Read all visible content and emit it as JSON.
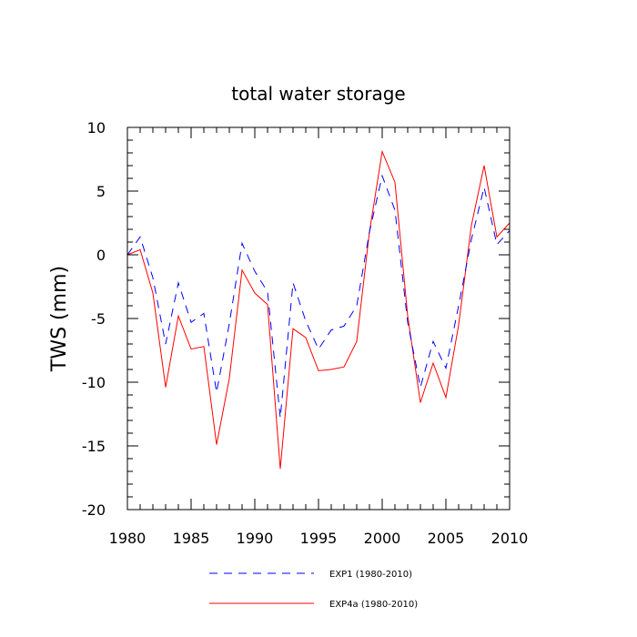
{
  "chart_data": {
    "type": "line",
    "title": "total water storage",
    "xlabel": "",
    "ylabel": "TWS  (mm)",
    "xlim": [
      1980,
      2010
    ],
    "ylim": [
      -20,
      10
    ],
    "xticks": [
      1980,
      1985,
      1990,
      1995,
      2000,
      2005,
      2010
    ],
    "yticks": [
      10,
      5,
      0,
      -5,
      -10,
      -15,
      -20
    ],
    "x": [
      1980,
      1981,
      1982,
      1983,
      1984,
      1985,
      1986,
      1987,
      1988,
      1989,
      1990,
      1991,
      1992,
      1993,
      1994,
      1995,
      1996,
      1997,
      1998,
      1999,
      2000,
      2001,
      2002,
      2003,
      2004,
      2005,
      2006,
      2007,
      2008,
      2009,
      2010
    ],
    "series": [
      {
        "name": "EXP1 (1980-2010)",
        "color": "#0000ff",
        "dash": "dashed",
        "values": [
          0,
          1.4,
          -1.8,
          -7.0,
          -2.2,
          -5.3,
          -4.6,
          -10.8,
          -5.4,
          0.9,
          -1.3,
          -2.9,
          -12.8,
          -2.2,
          -5.2,
          -7.4,
          -5.9,
          -5.6,
          -4.0,
          1.8,
          6.2,
          3.5,
          -5.3,
          -10.4,
          -6.8,
          -8.9,
          -4.0,
          1.2,
          5.3,
          0.8,
          1.9
        ]
      },
      {
        "name": "EXP4a (1980-2010)",
        "color": "#ff0000",
        "dash": "solid",
        "values": [
          0,
          0.4,
          -3.0,
          -10.4,
          -4.8,
          -7.4,
          -7.2,
          -14.9,
          -9.7,
          -1.2,
          -3.0,
          -3.9,
          -16.8,
          -5.8,
          -6.5,
          -9.1,
          -9.0,
          -8.8,
          -6.8,
          1.8,
          8.1,
          5.7,
          -4.8,
          -11.6,
          -8.5,
          -11.2,
          -5.5,
          2.3,
          7.0,
          1.4,
          2.5
        ]
      }
    ]
  }
}
